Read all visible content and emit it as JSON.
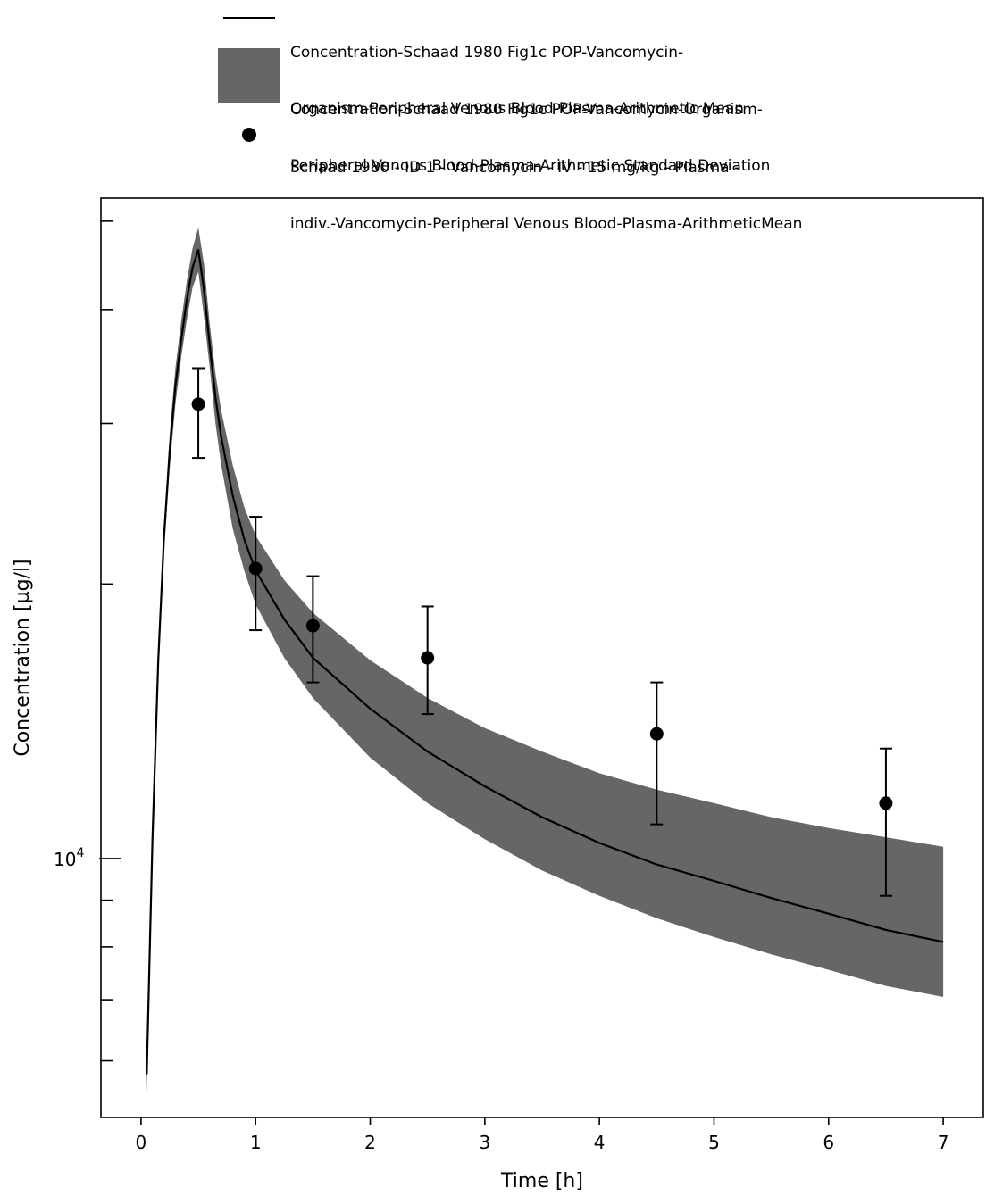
{
  "chart_data": {
    "type": "line",
    "title": "",
    "xlabel": "Time [h]",
    "ylabel": "Concentration [µg/l]",
    "xlim": [
      -0.35,
      7.35
    ],
    "ylim": [
      5200,
      53000
    ],
    "y_scale": "log",
    "x_ticks": [
      0,
      1,
      2,
      3,
      4,
      5,
      6,
      7
    ],
    "x_tick_labels": [
      "0",
      "1",
      "2",
      "3",
      "4",
      "5",
      "6",
      "7"
    ],
    "y_tick_labels": [
      {
        "base": "10",
        "exp": "4",
        "value": 10000
      }
    ],
    "y_minor_ticks": [
      6000,
      7000,
      8000,
      9000,
      20000,
      30000,
      40000,
      50000
    ],
    "grid": false,
    "legend_position": "top",
    "legend": [
      {
        "kind": "line",
        "lines": [
          "Concentration-Schaad 1980 Fig1c POP-Vancomycin-",
          "Organism-Peripheral Venous Blood-Plasma-Arithmetic Mean"
        ]
      },
      {
        "kind": "band",
        "lines": [
          "Concentration-Schaad 1980 Fig1c POP-Vancomycin-Organism-",
          "Peripheral Venous Blood-Plasma-Arithmetic Standard Deviation"
        ]
      },
      {
        "kind": "marker",
        "lines": [
          "Schaad 1980 - ID 1 - Vancomycin - IV - 15 mg/kg - Plasma -",
          "indiv.-Vancomycin-Peripheral Venous Blood-Plasma-ArithmeticMean"
        ]
      }
    ],
    "colors": {
      "line": "#000000",
      "band": "#666666",
      "marker": "#000000"
    },
    "series": [
      {
        "kind": "line",
        "x": [
          0.05,
          0.1,
          0.15,
          0.2,
          0.25,
          0.3,
          0.35,
          0.4,
          0.45,
          0.5,
          0.55,
          0.6,
          0.65,
          0.7,
          0.8,
          0.9,
          1.0,
          1.25,
          1.5,
          2.0,
          2.5,
          3.0,
          3.5,
          4.0,
          4.5,
          5.0,
          5.5,
          6.0,
          6.5,
          7.0
        ],
        "y": [
          5800,
          10500,
          16500,
          22500,
          28000,
          33000,
          37000,
          41000,
          44500,
          46500,
          42000,
          36500,
          32000,
          29000,
          25000,
          22400,
          20700,
          18300,
          16600,
          14600,
          13100,
          12000,
          11100,
          10400,
          9850,
          9450,
          9050,
          8700,
          8350,
          8100
        ]
      },
      {
        "kind": "band",
        "x": [
          0.05,
          0.1,
          0.15,
          0.2,
          0.25,
          0.3,
          0.35,
          0.4,
          0.45,
          0.5,
          0.55,
          0.6,
          0.65,
          0.7,
          0.8,
          0.9,
          1.0,
          1.25,
          1.5,
          2.0,
          2.5,
          3.0,
          3.5,
          4.0,
          4.5,
          5.0,
          5.5,
          6.0,
          6.5,
          7.0
        ],
        "upper": [
          5800,
          10700,
          17000,
          23300,
          29200,
          34500,
          38800,
          43000,
          46700,
          49200,
          44800,
          38500,
          34000,
          31000,
          27000,
          24300,
          22600,
          20200,
          18600,
          16500,
          15000,
          13900,
          13100,
          12400,
          11900,
          11500,
          11100,
          10800,
          10550,
          10300
        ],
        "lower": [
          5500,
          10200,
          16000,
          21700,
          26800,
          31500,
          35400,
          39000,
          42300,
          44000,
          39200,
          34500,
          30000,
          27000,
          23000,
          20700,
          19000,
          16600,
          15000,
          12900,
          11500,
          10500,
          9700,
          9100,
          8600,
          8200,
          7850,
          7550,
          7250,
          7050
        ]
      },
      {
        "kind": "scatter",
        "x": [
          0.5,
          1.0,
          1.5,
          2.5,
          4.5,
          6.5
        ],
        "y": [
          31500,
          20800,
          18000,
          16600,
          13700,
          11500
        ],
        "err_low": [
          27500,
          17800,
          15600,
          14400,
          10900,
          9100
        ],
        "err_high": [
          34500,
          23700,
          20400,
          18900,
          15600,
          13200
        ]
      }
    ]
  }
}
